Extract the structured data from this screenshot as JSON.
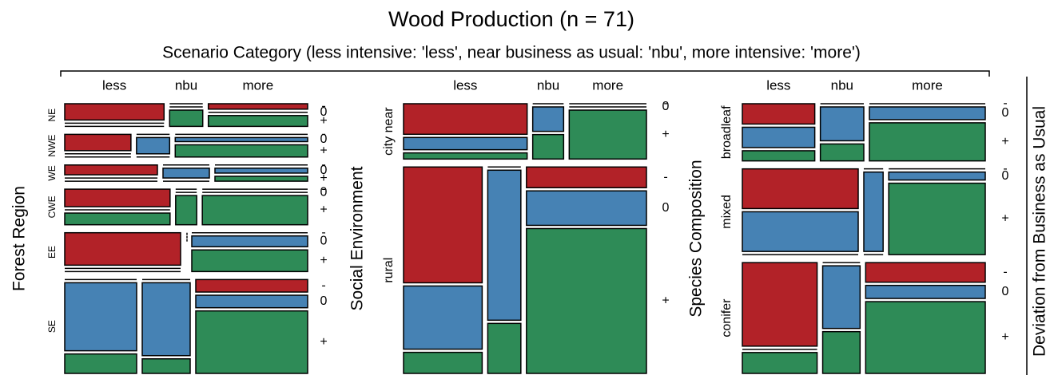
{
  "chart_data": {
    "type": "mosaic",
    "title": "Wood Production (n = 71)",
    "subtitle": "Scenario Category (less intensive: 'less', near business as usual: 'nbu', more intensive: 'more')",
    "y2label": "Deviation from Business as Usual",
    "columns": [
      "less",
      "nbu",
      "more"
    ],
    "levels": [
      "-",
      "0",
      "+"
    ],
    "colors": [
      "#b22228",
      "#4682b4",
      "#2e8b57"
    ],
    "panels": [
      {
        "label": "Forest Region",
        "rows": [
          "NE",
          "NWE",
          "WE",
          "CWE",
          "EE",
          "SE"
        ],
        "counts": [
          [
            [
              3,
              0,
              0
            ],
            [
              0,
              0,
              1
            ],
            [
              1,
              0,
              2
            ]
          ],
          [
            [
              2,
              0,
              0
            ],
            [
              0,
              1,
              0
            ],
            [
              0,
              1,
              3
            ]
          ],
          [
            [
              2,
              0,
              0
            ],
            [
              0,
              1,
              0
            ],
            [
              0,
              1,
              1
            ]
          ],
          [
            [
              3,
              0,
              2
            ],
            [
              0,
              0,
              1
            ],
            [
              0,
              0,
              5
            ]
          ],
          [
            [
              6,
              0,
              0
            ],
            [
              0,
              0,
              0
            ],
            [
              0,
              2,
              4
            ]
          ],
          [
            [
              0,
              7,
              2
            ],
            [
              0,
              5,
              1
            ],
            [
              2,
              2,
              10
            ]
          ]
        ]
      },
      {
        "label": "Social Environment",
        "rows": [
          "city near",
          "rural"
        ],
        "counts": [
          [
            [
              5,
              2,
              1
            ],
            [
              0,
              1,
              1
            ],
            [
              0,
              0,
              5
            ]
          ],
          [
            [
              11,
              6,
              2
            ],
            [
              0,
              6,
              2
            ],
            [
              3,
              5,
              21
            ]
          ]
        ]
      },
      {
        "label": "Species Composition",
        "rows": [
          "broadleaf",
          "mixed",
          "conifer"
        ],
        "counts": [
          [
            [
              2,
              2,
              1
            ],
            [
              0,
              2,
              1
            ],
            [
              0,
              2,
              6
            ]
          ],
          [
            [
              6,
              6,
              0
            ],
            [
              0,
              2,
              0
            ],
            [
              0,
              1,
              9
            ]
          ],
          [
            [
              8,
              0,
              2
            ],
            [
              0,
              3,
              2
            ],
            [
              3,
              2,
              11
            ]
          ]
        ]
      }
    ]
  }
}
